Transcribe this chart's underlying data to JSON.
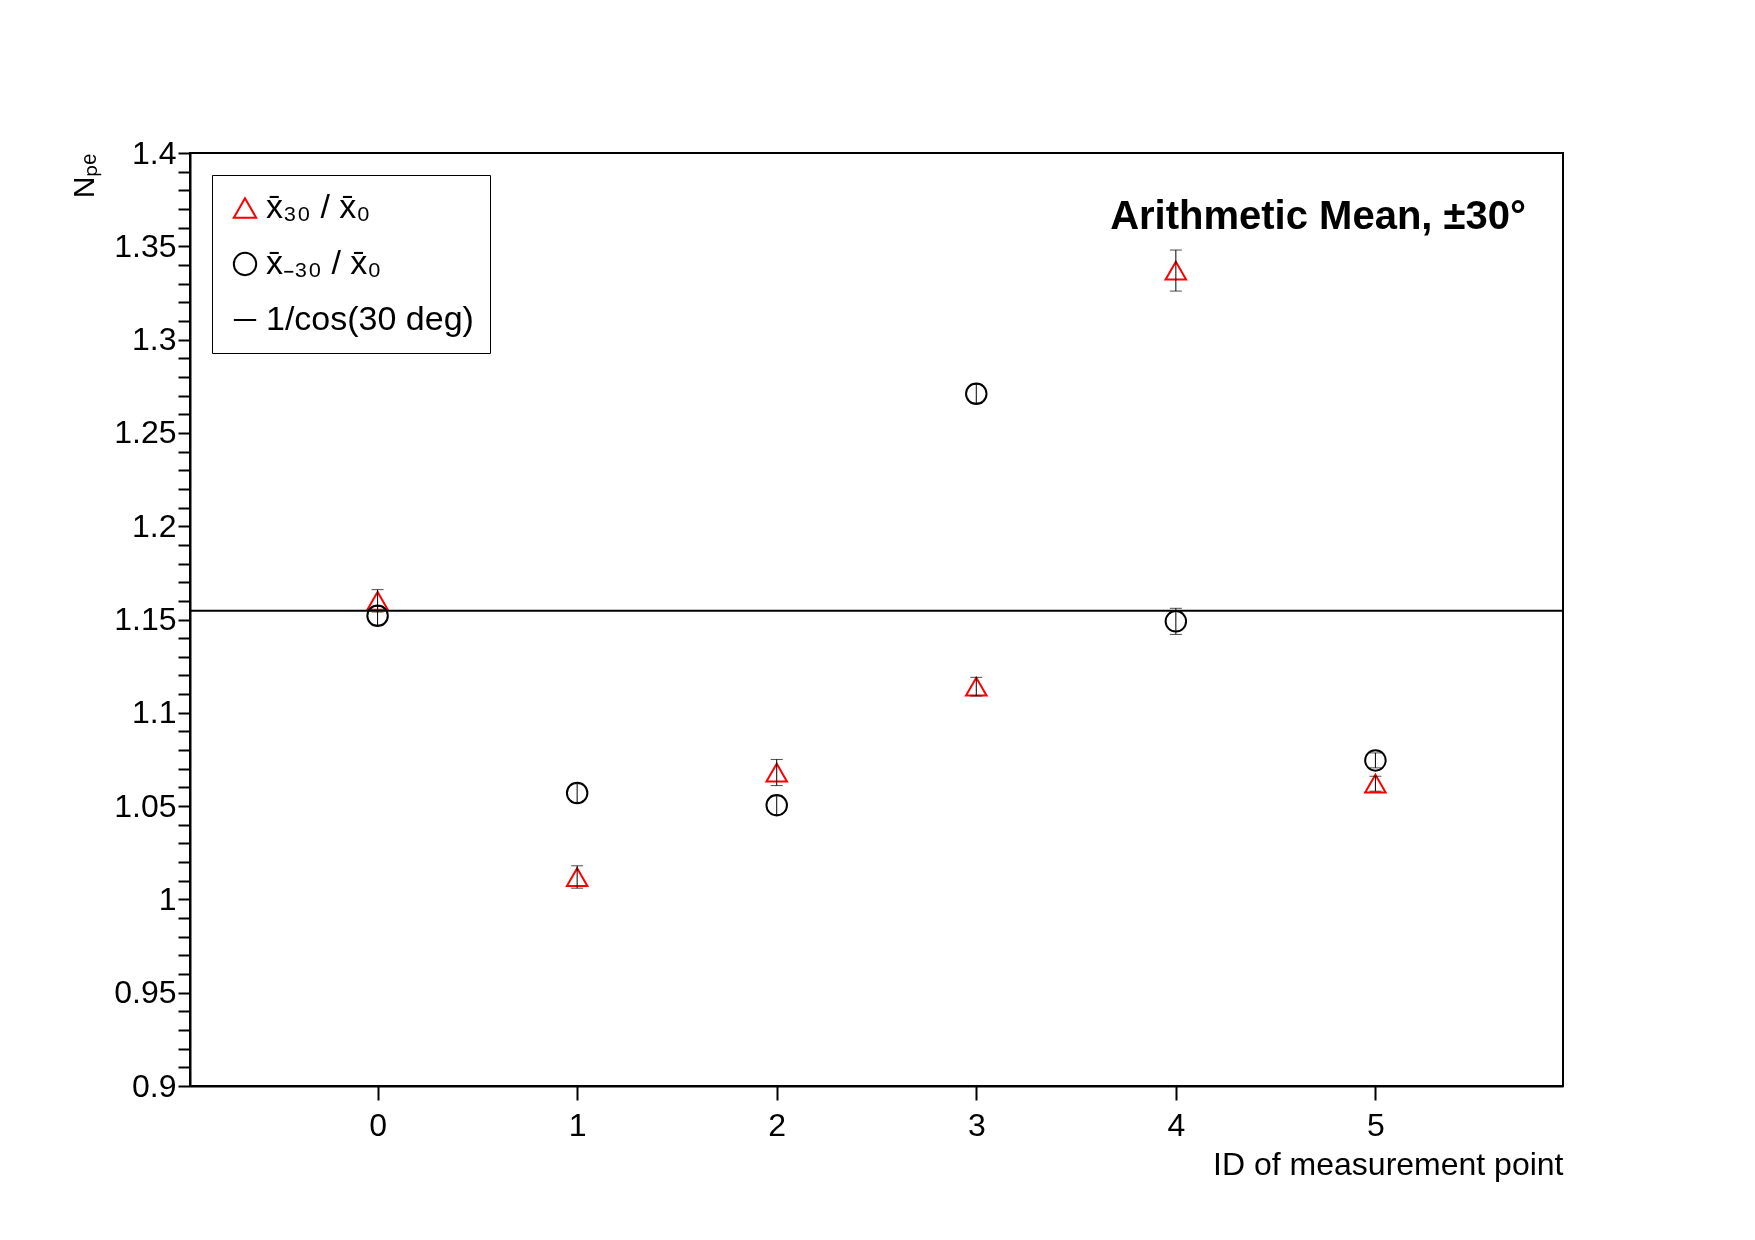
{
  "chart_data": {
    "type": "scatter",
    "title": "Arithmetic Mean, ±30°",
    "xlabel": "ID of measurement point",
    "ylabel": "Nₚₑ",
    "x": [
      0,
      1,
      2,
      3,
      4,
      5
    ],
    "series": [
      {
        "name": "x̄₃₀ / x̄₀",
        "color": "#ff0000",
        "marker": "triangle",
        "values": [
          1.16,
          1.012,
          1.068,
          1.114,
          1.337,
          1.062
        ],
        "errors": [
          0.006,
          0.006,
          0.007,
          0.005,
          0.011,
          0.004
        ]
      },
      {
        "name": "x̄₋₃₀ / x̄₀",
        "color": "#000000",
        "marker": "circle",
        "values": [
          1.152,
          1.057,
          1.0505,
          1.271,
          1.149,
          1.0745
        ],
        "errors": [
          0.005,
          0.005,
          0.005,
          0.005,
          0.007,
          0.004
        ]
      }
    ],
    "ref_lines": [
      {
        "axis": "y",
        "value": 1.1547,
        "label": "1/cos(30 deg)",
        "color": "#000000",
        "line_style": "solid"
      }
    ],
    "xlim": [
      -0.94,
      5.94
    ],
    "xticks": [
      0,
      1,
      2,
      3,
      4,
      5
    ],
    "ylim": [
      0.9,
      1.4
    ],
    "yticks": [
      0.9,
      {
        "value": 0.91,
        "label": null
      },
      {
        "value": 0.92,
        "label": null
      },
      {
        "value": 0.93,
        "label": null
      },
      {
        "value": 0.94,
        "label": null
      },
      0.95,
      {
        "value": 0.96,
        "label": null
      },
      {
        "value": 0.97,
        "label": null
      },
      {
        "value": 0.98,
        "label": null
      },
      {
        "value": 0.99,
        "label": null
      },
      1,
      {
        "value": 1.01,
        "label": null
      },
      {
        "value": 1.02,
        "label": null
      },
      {
        "value": 1.03,
        "label": null
      },
      {
        "value": 1.04,
        "label": null
      },
      1.05,
      {
        "value": 1.06,
        "label": null
      },
      {
        "value": 1.07,
        "label": null
      },
      {
        "value": 1.08,
        "label": null
      },
      {
        "value": 1.09,
        "label": null
      },
      1.1,
      {
        "value": 1.11,
        "label": null
      },
      {
        "value": 1.12,
        "label": null
      },
      {
        "value": 1.13,
        "label": null
      },
      {
        "value": 1.14,
        "label": null
      },
      1.15,
      {
        "value": 1.16,
        "label": null
      },
      {
        "value": 1.17,
        "label": null
      },
      {
        "value": 1.18,
        "label": null
      },
      {
        "value": 1.19,
        "label": null
      },
      1.2,
      {
        "value": 1.21,
        "label": null
      },
      {
        "value": 1.22,
        "label": null
      },
      {
        "value": 1.23,
        "label": null
      },
      {
        "value": 1.24,
        "label": null
      },
      1.25,
      {
        "value": 1.26,
        "label": null
      },
      {
        "value": 1.27,
        "label": null
      },
      {
        "value": 1.28,
        "label": null
      },
      {
        "value": 1.29,
        "label": null
      },
      1.3,
      {
        "value": 1.31,
        "label": null
      },
      {
        "value": 1.32,
        "label": null
      },
      {
        "value": 1.33,
        "label": null
      },
      {
        "value": 1.34,
        "label": null
      },
      1.35,
      {
        "value": 1.36,
        "label": null
      },
      {
        "value": 1.37,
        "label": null
      },
      {
        "value": 1.38,
        "label": null
      },
      {
        "value": 1.39,
        "label": null
      },
      1.4
    ],
    "grid": false,
    "legend": "top left"
  }
}
